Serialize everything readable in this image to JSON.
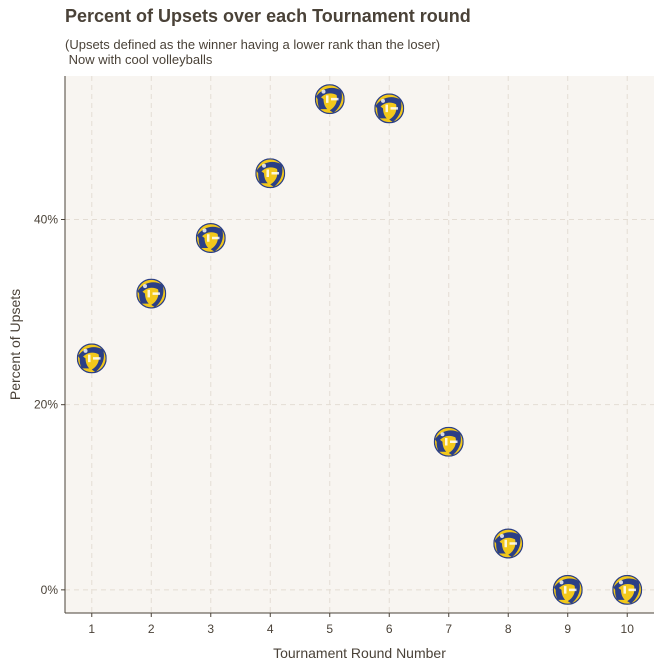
{
  "chart_data": {
    "type": "scatter",
    "title": "Percent of Upsets over each Tournament round",
    "subtitle": "(Upsets defined as the winner having a lower rank than the loser)\n Now with cool volleyballs",
    "xlabel": "Tournament Round Number",
    "ylabel": "Percent of Upsets",
    "x": [
      1,
      2,
      3,
      4,
      5,
      6,
      7,
      8,
      9,
      10
    ],
    "y": [
      25,
      32,
      38,
      45,
      53,
      52,
      16,
      5,
      0,
      0
    ],
    "x_ticks": [
      "1",
      "2",
      "3",
      "4",
      "5",
      "6",
      "7",
      "8",
      "9",
      "10"
    ],
    "y_ticks": [
      {
        "value": 0,
        "label": "0%"
      },
      {
        "value": 20,
        "label": "20%"
      },
      {
        "value": 40,
        "label": "40%"
      }
    ],
    "xlim": [
      0.55,
      10.45
    ],
    "ylim": [
      -2.5,
      55.5
    ],
    "grid": true,
    "marker": "volleyball-icon",
    "colors": {
      "panel_background": "#f8f5f1",
      "grid": "#e4ddd4",
      "axis": "#4a4238",
      "text": "#4a4238",
      "ball_yellow": "#f2c81b",
      "ball_blue": "#2b3f86"
    }
  }
}
